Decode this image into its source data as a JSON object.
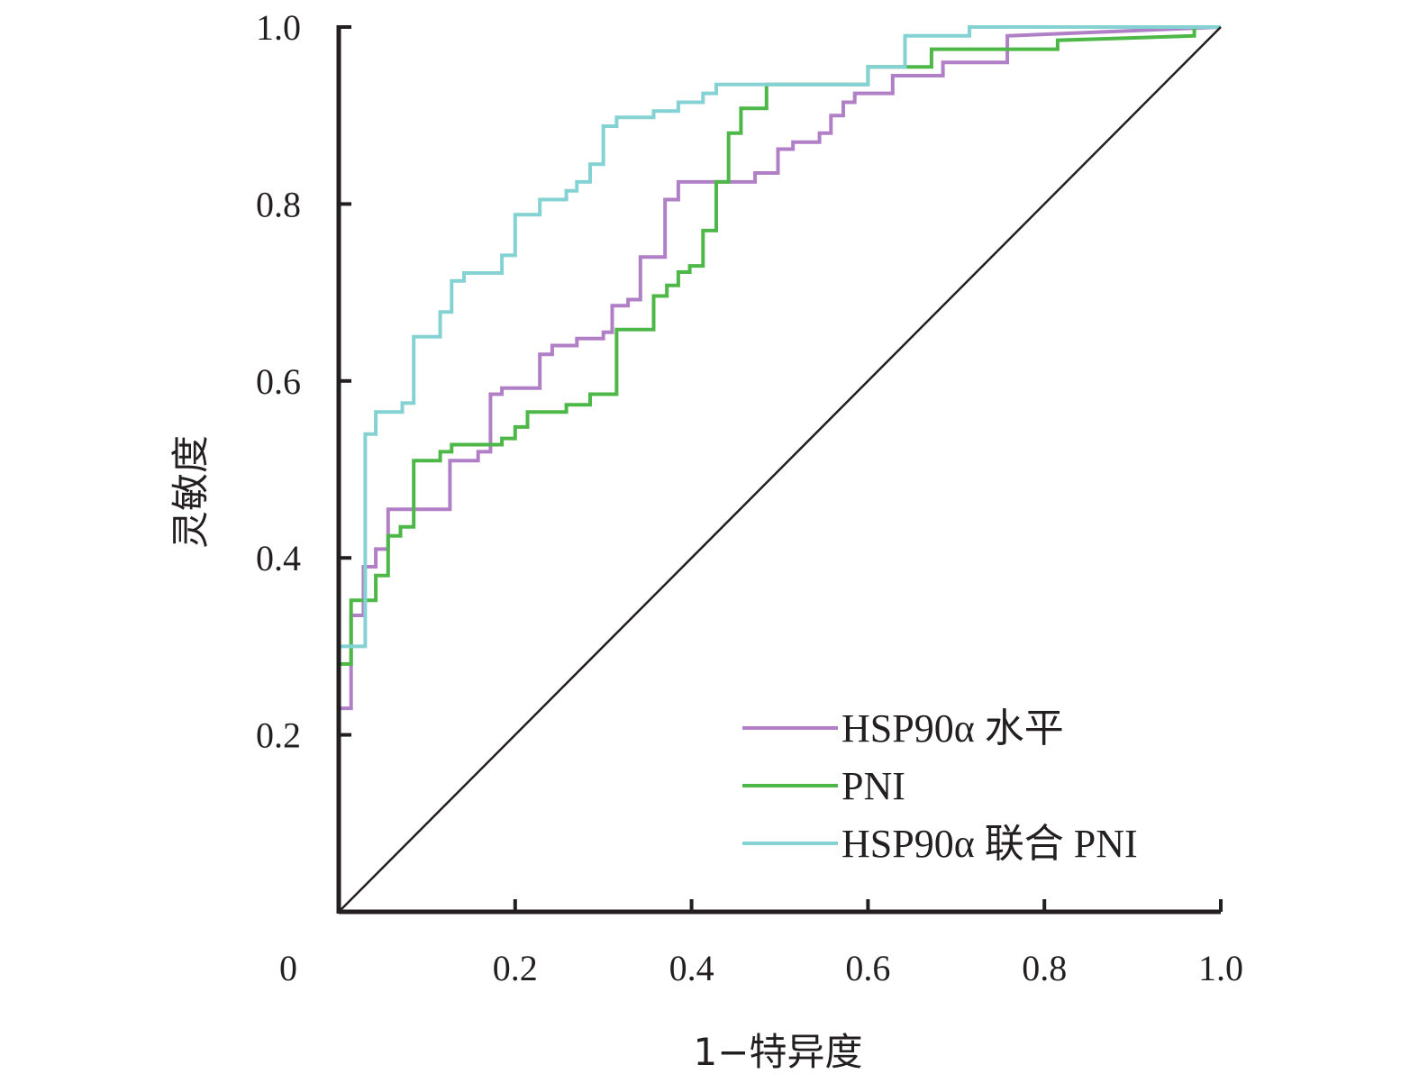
{
  "chart_data": {
    "type": "line",
    "title": "",
    "xlabel": "1−特异度",
    "ylabel": "灵敏度",
    "xlim": [
      0,
      1
    ],
    "ylim": [
      0,
      1
    ],
    "x_ticks": [
      0.2,
      0.4,
      0.6,
      0.8,
      1.0
    ],
    "x_tick_labels": [
      "0.2",
      "0.4",
      "0.6",
      "0.8",
      "1.0"
    ],
    "y_ticks": [
      0.2,
      0.4,
      0.6,
      0.8,
      1.0
    ],
    "y_tick_labels": [
      "0.2",
      "0.4",
      "0.6",
      "0.8",
      "1.0"
    ],
    "origin_label": "0",
    "grid": false,
    "legend_position": "bottom-right",
    "reference_line": [
      [
        0,
        0
      ],
      [
        1,
        1
      ]
    ],
    "colors": {
      "axis": "#231f20",
      "reference": "#231f20"
    },
    "series": [
      {
        "name": "HSP90α 水平",
        "color": "#b07fc6",
        "points": [
          [
            0,
            0.23
          ],
          [
            0.014,
            0.23
          ],
          [
            0.014,
            0.335
          ],
          [
            0.028,
            0.335
          ],
          [
            0.028,
            0.39
          ],
          [
            0.042,
            0.39
          ],
          [
            0.042,
            0.41
          ],
          [
            0.056,
            0.41
          ],
          [
            0.056,
            0.455
          ],
          [
            0.126,
            0.455
          ],
          [
            0.126,
            0.51
          ],
          [
            0.158,
            0.51
          ],
          [
            0.158,
            0.52
          ],
          [
            0.172,
            0.52
          ],
          [
            0.172,
            0.585
          ],
          [
            0.185,
            0.585
          ],
          [
            0.185,
            0.592
          ],
          [
            0.228,
            0.592
          ],
          [
            0.228,
            0.63
          ],
          [
            0.242,
            0.63
          ],
          [
            0.242,
            0.64
          ],
          [
            0.27,
            0.64
          ],
          [
            0.27,
            0.648
          ],
          [
            0.3,
            0.648
          ],
          [
            0.3,
            0.655
          ],
          [
            0.31,
            0.655
          ],
          [
            0.31,
            0.685
          ],
          [
            0.328,
            0.685
          ],
          [
            0.328,
            0.692
          ],
          [
            0.342,
            0.692
          ],
          [
            0.342,
            0.74
          ],
          [
            0.37,
            0.74
          ],
          [
            0.37,
            0.805
          ],
          [
            0.385,
            0.805
          ],
          [
            0.385,
            0.825
          ],
          [
            0.472,
            0.825
          ],
          [
            0.472,
            0.835
          ],
          [
            0.498,
            0.835
          ],
          [
            0.498,
            0.862
          ],
          [
            0.515,
            0.862
          ],
          [
            0.515,
            0.87
          ],
          [
            0.545,
            0.87
          ],
          [
            0.545,
            0.88
          ],
          [
            0.558,
            0.88
          ],
          [
            0.558,
            0.9
          ],
          [
            0.572,
            0.9
          ],
          [
            0.572,
            0.915
          ],
          [
            0.585,
            0.915
          ],
          [
            0.585,
            0.925
          ],
          [
            0.628,
            0.925
          ],
          [
            0.628,
            0.945
          ],
          [
            0.685,
            0.945
          ],
          [
            0.685,
            0.96
          ],
          [
            0.758,
            0.96
          ],
          [
            0.758,
            0.99
          ],
          [
            1.0,
            1.0
          ]
        ]
      },
      {
        "name": "PNI",
        "color": "#4db848",
        "points": [
          [
            0,
            0.28
          ],
          [
            0.014,
            0.28
          ],
          [
            0.014,
            0.352
          ],
          [
            0.042,
            0.352
          ],
          [
            0.042,
            0.38
          ],
          [
            0.056,
            0.38
          ],
          [
            0.056,
            0.425
          ],
          [
            0.07,
            0.425
          ],
          [
            0.07,
            0.435
          ],
          [
            0.085,
            0.435
          ],
          [
            0.085,
            0.51
          ],
          [
            0.115,
            0.51
          ],
          [
            0.115,
            0.52
          ],
          [
            0.128,
            0.52
          ],
          [
            0.128,
            0.528
          ],
          [
            0.185,
            0.528
          ],
          [
            0.185,
            0.535
          ],
          [
            0.2,
            0.535
          ],
          [
            0.2,
            0.548
          ],
          [
            0.214,
            0.548
          ],
          [
            0.214,
            0.565
          ],
          [
            0.258,
            0.565
          ],
          [
            0.258,
            0.573
          ],
          [
            0.285,
            0.573
          ],
          [
            0.285,
            0.585
          ],
          [
            0.315,
            0.585
          ],
          [
            0.315,
            0.658
          ],
          [
            0.357,
            0.658
          ],
          [
            0.357,
            0.696
          ],
          [
            0.372,
            0.696
          ],
          [
            0.372,
            0.708
          ],
          [
            0.385,
            0.708
          ],
          [
            0.385,
            0.723
          ],
          [
            0.398,
            0.723
          ],
          [
            0.398,
            0.73
          ],
          [
            0.413,
            0.73
          ],
          [
            0.413,
            0.77
          ],
          [
            0.428,
            0.77
          ],
          [
            0.428,
            0.825
          ],
          [
            0.442,
            0.825
          ],
          [
            0.442,
            0.88
          ],
          [
            0.456,
            0.88
          ],
          [
            0.456,
            0.908
          ],
          [
            0.485,
            0.908
          ],
          [
            0.485,
            0.935
          ],
          [
            0.6,
            0.935
          ],
          [
            0.6,
            0.955
          ],
          [
            0.672,
            0.955
          ],
          [
            0.672,
            0.975
          ],
          [
            0.815,
            0.975
          ],
          [
            0.815,
            0.985
          ],
          [
            0.97,
            0.99
          ],
          [
            0.97,
            1.0
          ],
          [
            1.0,
            1.0
          ]
        ]
      },
      {
        "name": "HSP90α 联合 PNI",
        "color": "#84d2d4",
        "points": [
          [
            0,
            0.3
          ],
          [
            0.03,
            0.3
          ],
          [
            0.03,
            0.54
          ],
          [
            0.042,
            0.54
          ],
          [
            0.042,
            0.565
          ],
          [
            0.072,
            0.565
          ],
          [
            0.072,
            0.575
          ],
          [
            0.085,
            0.575
          ],
          [
            0.085,
            0.65
          ],
          [
            0.115,
            0.65
          ],
          [
            0.115,
            0.678
          ],
          [
            0.128,
            0.678
          ],
          [
            0.128,
            0.713
          ],
          [
            0.142,
            0.713
          ],
          [
            0.142,
            0.722
          ],
          [
            0.185,
            0.722
          ],
          [
            0.185,
            0.742
          ],
          [
            0.2,
            0.742
          ],
          [
            0.2,
            0.788
          ],
          [
            0.228,
            0.788
          ],
          [
            0.228,
            0.805
          ],
          [
            0.258,
            0.805
          ],
          [
            0.258,
            0.815
          ],
          [
            0.27,
            0.815
          ],
          [
            0.27,
            0.825
          ],
          [
            0.285,
            0.825
          ],
          [
            0.285,
            0.845
          ],
          [
            0.3,
            0.845
          ],
          [
            0.3,
            0.888
          ],
          [
            0.315,
            0.888
          ],
          [
            0.315,
            0.898
          ],
          [
            0.357,
            0.898
          ],
          [
            0.357,
            0.905
          ],
          [
            0.385,
            0.905
          ],
          [
            0.385,
            0.915
          ],
          [
            0.413,
            0.915
          ],
          [
            0.413,
            0.925
          ],
          [
            0.428,
            0.925
          ],
          [
            0.428,
            0.935
          ],
          [
            0.6,
            0.935
          ],
          [
            0.6,
            0.955
          ],
          [
            0.642,
            0.955
          ],
          [
            0.642,
            0.99
          ],
          [
            0.715,
            0.99
          ],
          [
            0.715,
            1.0
          ],
          [
            1.0,
            1.0
          ]
        ]
      }
    ]
  }
}
